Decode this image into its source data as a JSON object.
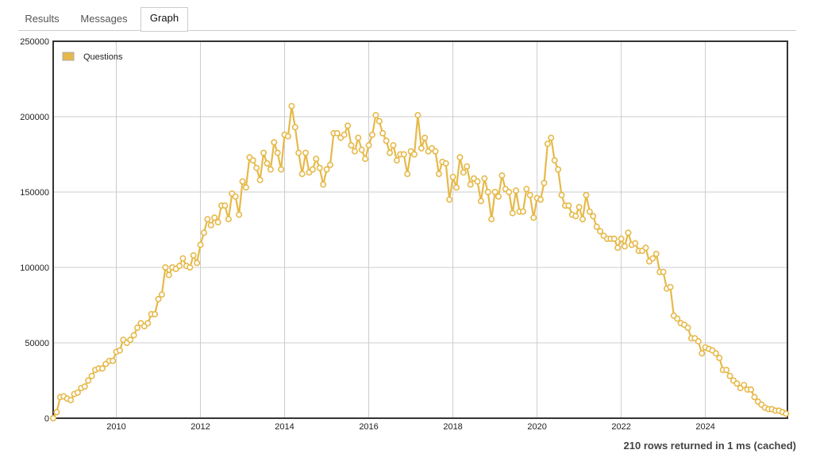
{
  "tabs": [
    "Results",
    "Messages",
    "Graph"
  ],
  "active_tab": 2,
  "status": "210 rows returned in 1 ms (cached)",
  "chart_data": {
    "type": "line",
    "legend": "top-left",
    "grid": true,
    "xlim": [
      2008.5,
      2025.95
    ],
    "xticks": [
      2010,
      2012,
      2014,
      2016,
      2018,
      2020,
      2022,
      2024
    ],
    "ylim": [
      0,
      250000
    ],
    "yticks": [
      0,
      50000,
      100000,
      150000,
      200000,
      250000
    ],
    "x": [
      2008.5,
      2008.583,
      2008.667,
      2008.75,
      2008.833,
      2008.917,
      2009,
      2009.083,
      2009.167,
      2009.25,
      2009.333,
      2009.417,
      2009.5,
      2009.583,
      2009.667,
      2009.75,
      2009.833,
      2009.917,
      2010,
      2010.083,
      2010.167,
      2010.25,
      2010.333,
      2010.417,
      2010.5,
      2010.583,
      2010.667,
      2010.75,
      2010.833,
      2010.917,
      2011,
      2011.083,
      2011.167,
      2011.25,
      2011.333,
      2011.417,
      2011.5,
      2011.583,
      2011.667,
      2011.75,
      2011.833,
      2011.917,
      2012,
      2012.083,
      2012.167,
      2012.25,
      2012.333,
      2012.417,
      2012.5,
      2012.583,
      2012.667,
      2012.75,
      2012.833,
      2012.917,
      2013,
      2013.083,
      2013.167,
      2013.25,
      2013.333,
      2013.417,
      2013.5,
      2013.583,
      2013.667,
      2013.75,
      2013.833,
      2013.917,
      2014,
      2014.083,
      2014.167,
      2014.25,
      2014.333,
      2014.417,
      2014.5,
      2014.583,
      2014.667,
      2014.75,
      2014.833,
      2014.917,
      2015,
      2015.083,
      2015.167,
      2015.25,
      2015.333,
      2015.417,
      2015.5,
      2015.583,
      2015.667,
      2015.75,
      2015.833,
      2015.917,
      2016,
      2016.083,
      2016.167,
      2016.25,
      2016.333,
      2016.417,
      2016.5,
      2016.583,
      2016.667,
      2016.75,
      2016.833,
      2016.917,
      2017,
      2017.083,
      2017.167,
      2017.25,
      2017.333,
      2017.417,
      2017.5,
      2017.583,
      2017.667,
      2017.75,
      2017.833,
      2017.917,
      2018,
      2018.083,
      2018.167,
      2018.25,
      2018.333,
      2018.417,
      2018.5,
      2018.583,
      2018.667,
      2018.75,
      2018.833,
      2018.917,
      2019,
      2019.083,
      2019.167,
      2019.25,
      2019.333,
      2019.417,
      2019.5,
      2019.583,
      2019.667,
      2019.75,
      2019.833,
      2019.917,
      2020,
      2020.083,
      2020.167,
      2020.25,
      2020.333,
      2020.417,
      2020.5,
      2020.583,
      2020.667,
      2020.75,
      2020.833,
      2020.917,
      2021,
      2021.083,
      2021.167,
      2021.25,
      2021.333,
      2021.417,
      2021.5,
      2021.583,
      2021.667,
      2021.75,
      2021.833,
      2021.917,
      2022,
      2022.083,
      2022.167,
      2022.25,
      2022.333,
      2022.417,
      2022.5,
      2022.583,
      2022.667,
      2022.75,
      2022.833,
      2022.917,
      2023,
      2023.083,
      2023.167,
      2023.25,
      2023.333,
      2023.417,
      2023.5,
      2023.583,
      2023.667,
      2023.75,
      2023.833,
      2023.917,
      2024,
      2024.083,
      2024.167,
      2024.25,
      2024.333,
      2024.417,
      2024.5,
      2024.583,
      2024.667,
      2024.75,
      2024.833,
      2024.917,
      2025,
      2025.083,
      2025.167,
      2025.25,
      2025.333,
      2025.417,
      2025.5,
      2025.583,
      2025.667,
      2025.75,
      2025.833,
      2025.917
    ],
    "series": [
      {
        "name": "Questions",
        "color": "#e6b94a",
        "values": [
          0,
          4000,
          14000,
          14500,
          13000,
          12000,
          16000,
          17000,
          20000,
          21000,
          25000,
          28000,
          32000,
          33000,
          33000,
          36000,
          38000,
          38000,
          44000,
          45000,
          52000,
          50000,
          52000,
          55000,
          60000,
          63000,
          61000,
          63000,
          69000,
          69000,
          79000,
          82000,
          100000,
          95000,
          100000,
          99000,
          101000,
          106000,
          101000,
          100000,
          108000,
          103000,
          115000,
          123000,
          132000,
          128000,
          133000,
          130000,
          141000,
          141000,
          132000,
          149000,
          147000,
          135000,
          157000,
          153000,
          173000,
          171000,
          166000,
          158000,
          176000,
          169000,
          165000,
          183000,
          176000,
          165000,
          188000,
          187000,
          207000,
          193000,
          176000,
          162000,
          176000,
          163000,
          165000,
          172000,
          166000,
          155000,
          165000,
          168000,
          189000,
          189000,
          186000,
          188000,
          194000,
          181000,
          177000,
          186000,
          178000,
          172000,
          181000,
          188000,
          201000,
          197000,
          189000,
          184000,
          176000,
          181000,
          171000,
          175000,
          175000,
          162000,
          177000,
          175000,
          201000,
          179000,
          186000,
          177000,
          179000,
          177000,
          162000,
          170000,
          169000,
          145000,
          160000,
          153000,
          173000,
          163000,
          167000,
          155000,
          159000,
          157000,
          144000,
          159000,
          150000,
          132000,
          150000,
          147000,
          161000,
          152000,
          150000,
          136000,
          151000,
          137000,
          137000,
          152000,
          148000,
          133000,
          146000,
          145000,
          156000,
          182000,
          186000,
          171000,
          165000,
          148000,
          141000,
          141000,
          135000,
          134000,
          140000,
          132000,
          148000,
          137000,
          134000,
          127000,
          124000,
          121000,
          119000,
          119000,
          119000,
          113000,
          119000,
          114000,
          123000,
          115000,
          116000,
          111000,
          111000,
          113000,
          104000,
          106000,
          109000,
          97000,
          97000,
          86000,
          87000,
          68000,
          66000,
          63000,
          62000,
          60000,
          53000,
          53000,
          51000,
          43000,
          47000,
          46000,
          45000,
          43000,
          40000,
          32000,
          32000,
          28000,
          25000,
          23000,
          20000,
          22000,
          19000,
          19000,
          14000,
          11000,
          9000,
          7000,
          6000,
          6000,
          5000,
          5000,
          4000,
          3000
        ]
      }
    ]
  }
}
